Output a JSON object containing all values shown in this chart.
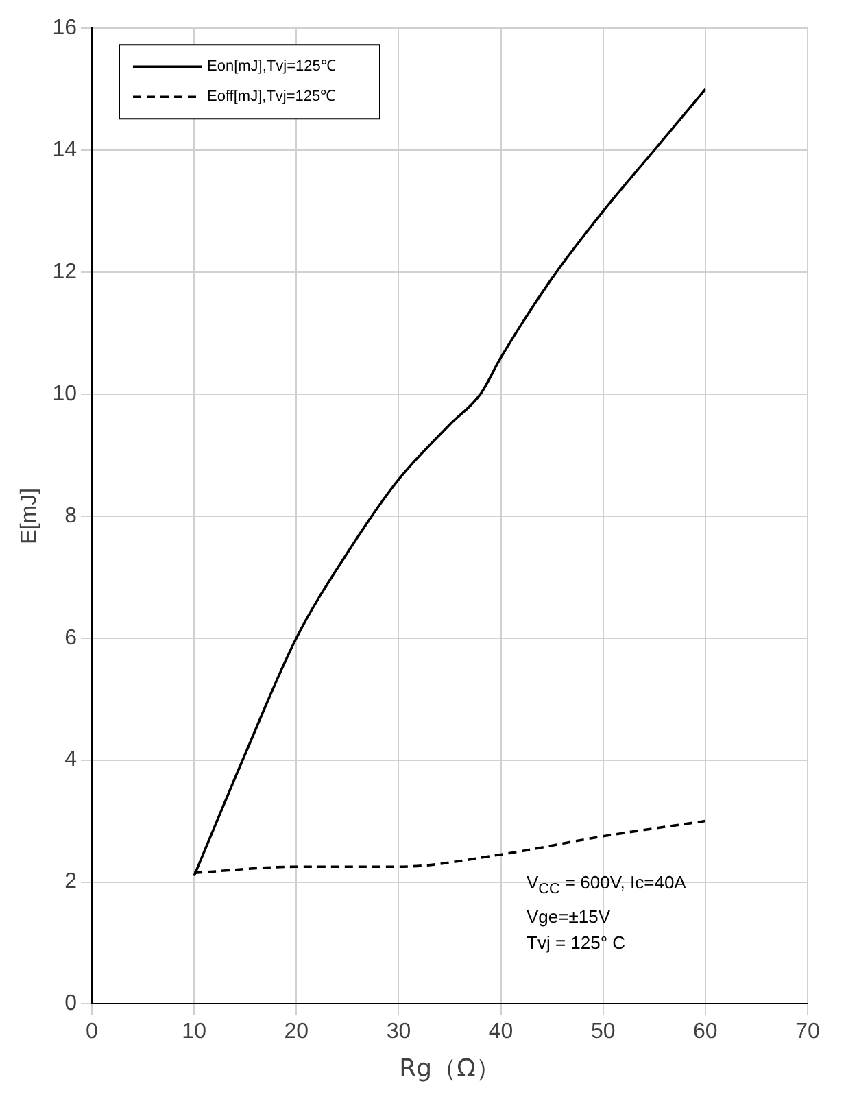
{
  "chart_data": {
    "type": "line",
    "xlabel": "Rg（Ω）",
    "ylabel": "E[mJ]",
    "xlim": [
      0,
      70
    ],
    "xticks": [
      0,
      10,
      20,
      30,
      40,
      50,
      60,
      70
    ],
    "ylim": [
      0,
      16
    ],
    "yticks": [
      0,
      2,
      4,
      6,
      8,
      10,
      12,
      14,
      16
    ],
    "grid": true,
    "legend": "top left",
    "marker": "none",
    "series": [
      {
        "name": "Eon[mJ],Tvj=125℃",
        "color": "#000000",
        "line_style": "solid",
        "x": [
          10,
          15,
          20,
          25,
          30,
          35,
          38,
          40,
          45,
          50,
          55,
          60
        ],
        "values": [
          2.1,
          4.1,
          6.0,
          7.4,
          8.6,
          9.5,
          10.0,
          10.6,
          11.9,
          13.0,
          14.0,
          15.0
        ]
      },
      {
        "name": "Eoff[mJ],Tvj=125℃",
        "color": "#000000",
        "line_style": "dashed",
        "x": [
          10,
          20,
          30,
          40,
          50,
          60
        ],
        "values": [
          2.15,
          2.25,
          2.25,
          2.45,
          2.75,
          3.0
        ]
      }
    ],
    "annotations": [
      {
        "text": "V$_{CC}$ = 600V, Ic=40A"
      },
      {
        "text": "Vge=±15V"
      },
      {
        "text": "Tvj = 125° C"
      }
    ]
  }
}
